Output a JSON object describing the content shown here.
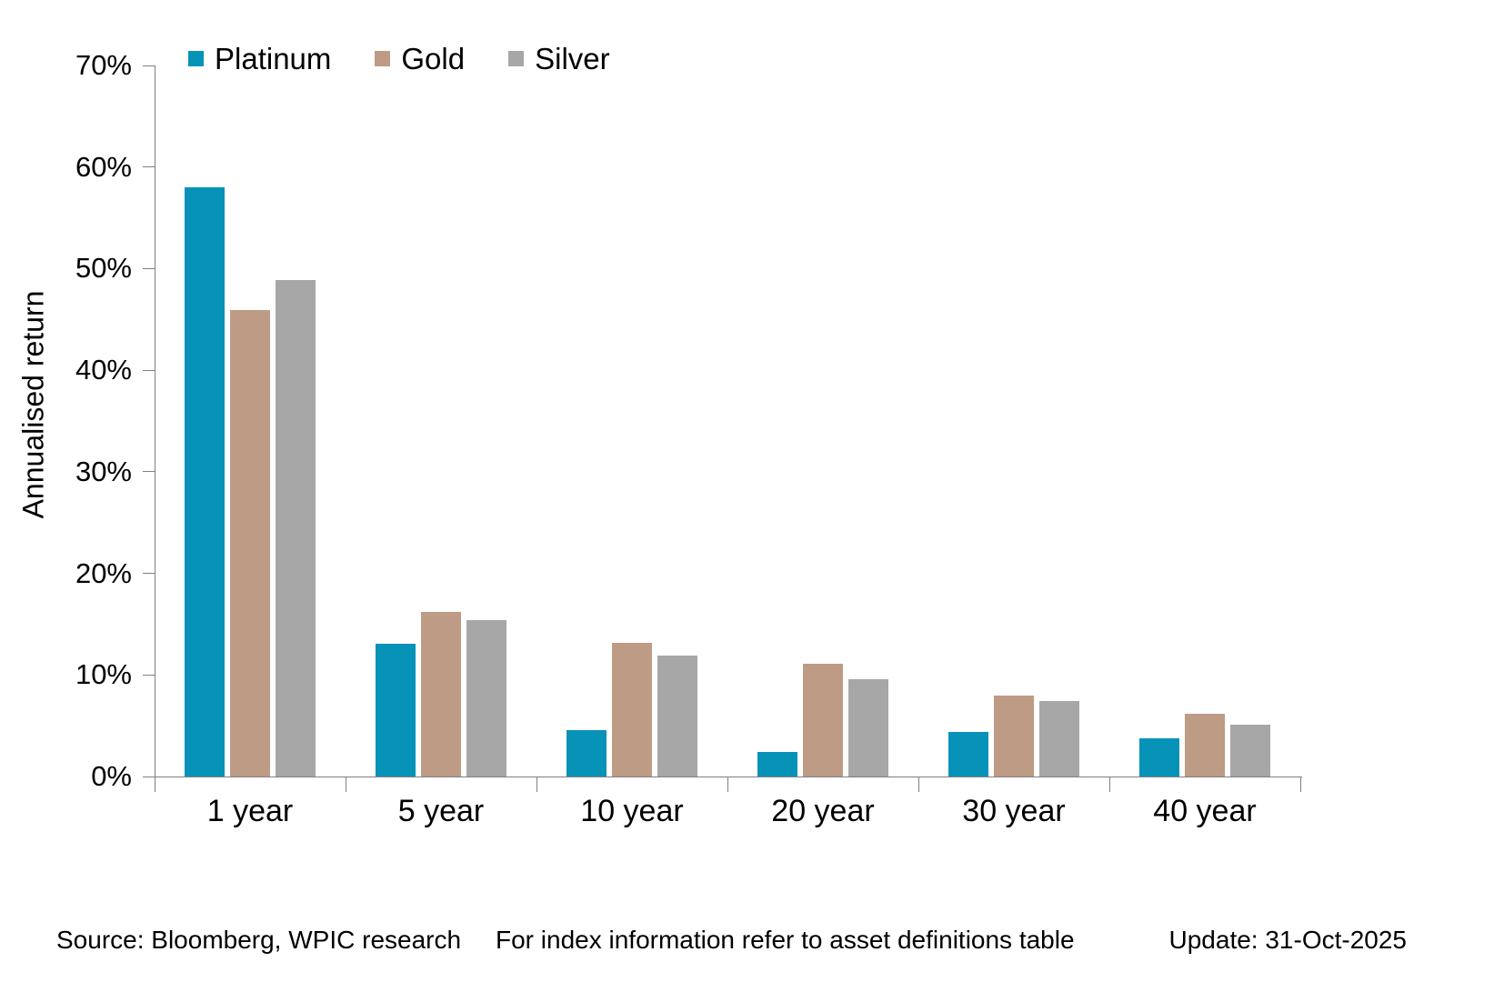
{
  "chart_data": {
    "type": "bar",
    "ylabel": "Annualised return",
    "categories": [
      "1 year",
      "5 year",
      "10 year",
      "20 year",
      "30 year",
      "40 year"
    ],
    "series": [
      {
        "name": "Platinum",
        "color": "#0792B8",
        "values": [
          58.0,
          13.1,
          4.6,
          2.4,
          4.4,
          3.8
        ]
      },
      {
        "name": "Gold",
        "color": "#BE9B85",
        "values": [
          45.9,
          16.2,
          13.2,
          11.1,
          8.0,
          6.2
        ]
      },
      {
        "name": "Silver",
        "color": "#A7A7A7",
        "values": [
          48.9,
          15.4,
          11.9,
          9.6,
          7.4,
          5.1
        ]
      }
    ],
    "ylim": [
      0,
      70
    ],
    "ytick_step": 10,
    "ytick_suffix": "%",
    "grid": false,
    "legend_position": "top"
  },
  "footer": {
    "source": "Source: Bloomberg, WPIC research",
    "note": "For index information refer to asset definitions table",
    "update": "Update: 31-Oct-2025"
  },
  "colors": {
    "axis": "#808080",
    "text": "#000000",
    "background": "#FFFFFF"
  }
}
